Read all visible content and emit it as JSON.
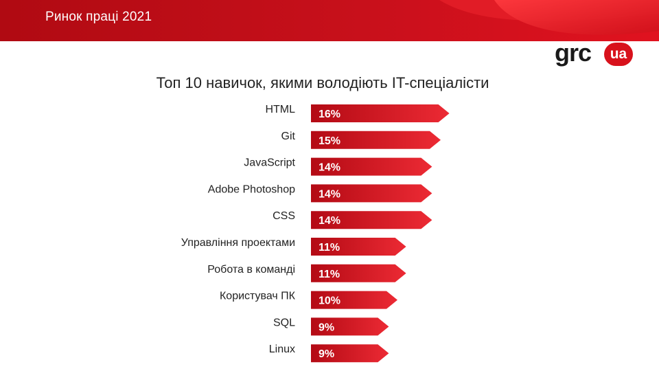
{
  "header": {
    "title": "Ринок праці 2021"
  },
  "logo": {
    "text": "grc",
    "badge": "ua"
  },
  "colors": {
    "bar_start": "#b30a14",
    "bar_end": "#ec2a34",
    "header": "#c8101b"
  },
  "chart_data": {
    "type": "bar",
    "orientation": "horizontal",
    "title": "Топ 10 навичок, якими володіють IT-спеціалісти",
    "categories": [
      "HTML",
      "Git",
      "JavaScript",
      "Adobe Photoshop",
      "CSS",
      "Управління проектами",
      "Робота в команді",
      "Користувач ПК",
      "SQL",
      "Linux"
    ],
    "values": [
      16,
      15,
      14,
      14,
      14,
      11,
      11,
      10,
      9,
      9
    ],
    "value_labels": [
      "16%",
      "15%",
      "14%",
      "14%",
      "14%",
      "11%",
      "11%",
      "10%",
      "9%",
      "9%"
    ],
    "unit": "%",
    "grid": false
  }
}
